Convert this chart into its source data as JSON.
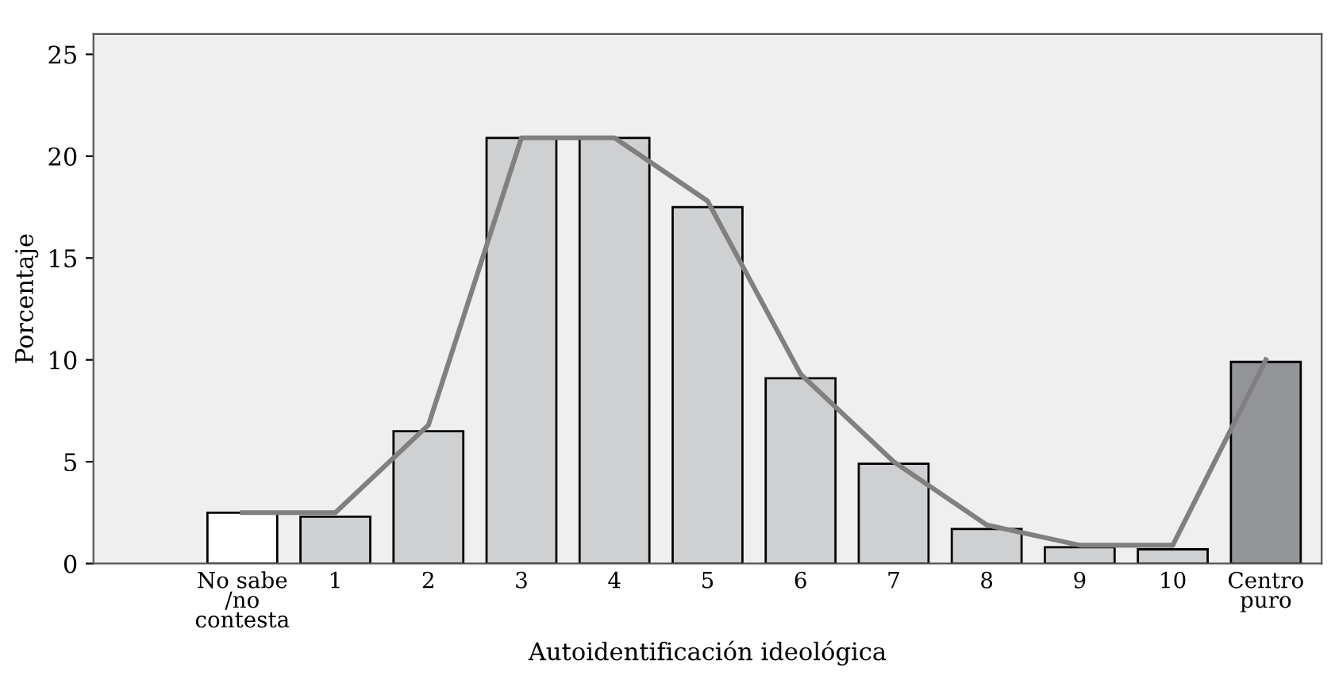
{
  "chart_data": {
    "type": "bar",
    "xlabel": "Autoidentificación ideológica",
    "ylabel": "Porcentaje",
    "categories": [
      "No sabe\n/no\ncontesta",
      "1",
      "2",
      "3",
      "4",
      "5",
      "6",
      "7",
      "8",
      "9",
      "10",
      "Centro\npuro"
    ],
    "series": [
      {
        "values": [
          2.5,
          2.3,
          6.5,
          20.9,
          20.9,
          17.5,
          9.1,
          4.9,
          1.7,
          0.8,
          0.7,
          9.9
        ],
        "colors": [
          "#ffffff",
          "#cfd0d2",
          "#cfd0d2",
          "#cfd0d2",
          "#cfd0d2",
          "#cfd0d2",
          "#cfd0d2",
          "#cfd0d2",
          "#cfd0d2",
          "#cfd0d2",
          "#cfd0d2",
          "#949599"
        ]
      },
      {
        "type": "line",
        "color": "#808080",
        "values": [
          2.5,
          2.5,
          6.8,
          20.9,
          20.9,
          17.8,
          9.3,
          5.0,
          1.9,
          0.9,
          0.9,
          10.0
        ]
      }
    ],
    "ylim": [
      0,
      26
    ],
    "yticks": [
      0,
      5,
      10,
      15,
      20,
      25
    ],
    "grid": false,
    "legend": false,
    "marker": "none"
  }
}
